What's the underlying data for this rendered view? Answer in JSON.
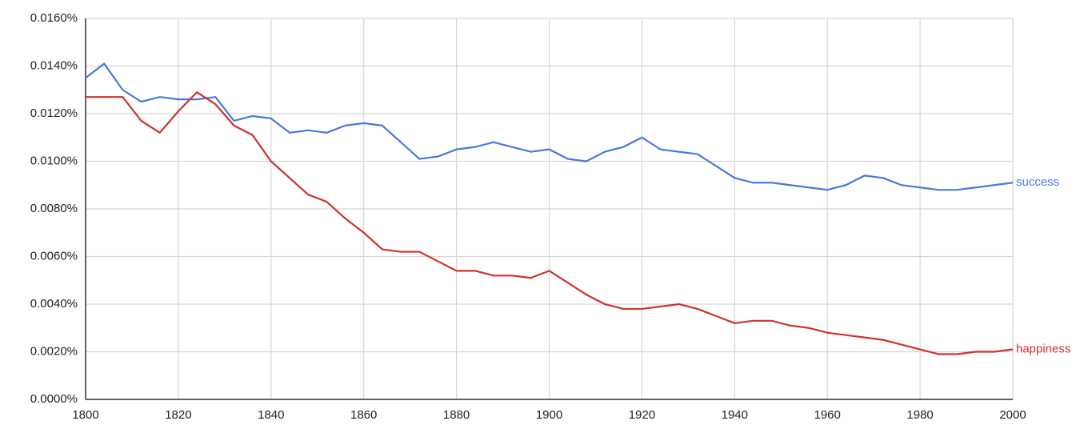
{
  "chart_data": {
    "type": "line",
    "x": [
      1800,
      1804,
      1808,
      1812,
      1816,
      1820,
      1824,
      1828,
      1832,
      1836,
      1840,
      1844,
      1848,
      1852,
      1856,
      1860,
      1864,
      1868,
      1872,
      1876,
      1880,
      1884,
      1888,
      1892,
      1896,
      1900,
      1904,
      1908,
      1912,
      1916,
      1920,
      1924,
      1928,
      1932,
      1936,
      1940,
      1944,
      1948,
      1952,
      1956,
      1960,
      1964,
      1968,
      1972,
      1976,
      1980,
      1984,
      1988,
      1992,
      1996,
      2000
    ],
    "series": [
      {
        "name": "success",
        "color": "#4a78e0",
        "values": [
          0.0135,
          0.0141,
          0.013,
          0.0125,
          0.0127,
          0.0126,
          0.0126,
          0.0127,
          0.0117,
          0.0119,
          0.0118,
          0.0112,
          0.0113,
          0.0112,
          0.0115,
          0.0116,
          0.0115,
          0.0108,
          0.0101,
          0.0102,
          0.0105,
          0.0106,
          0.0108,
          0.0106,
          0.0104,
          0.0105,
          0.0101,
          0.01,
          0.0104,
          0.0106,
          0.011,
          0.0105,
          0.0104,
          0.0103,
          0.0098,
          0.0093,
          0.0091,
          0.0091,
          0.009,
          0.0089,
          0.0088,
          0.009,
          0.0094,
          0.0093,
          0.009,
          0.0089,
          0.0088,
          0.0088,
          0.0089,
          0.009,
          0.0091
        ]
      },
      {
        "name": "happiness",
        "color": "#d0312d",
        "values": [
          0.0127,
          0.0127,
          0.0127,
          0.0117,
          0.0112,
          0.0121,
          0.0129,
          0.0124,
          0.0115,
          0.0111,
          0.01,
          0.0093,
          0.0086,
          0.0083,
          0.0076,
          0.007,
          0.0063,
          0.0062,
          0.0062,
          0.0058,
          0.0054,
          0.0054,
          0.0052,
          0.0052,
          0.0051,
          0.0054,
          0.0049,
          0.0044,
          0.004,
          0.0038,
          0.0038,
          0.0039,
          0.004,
          0.0038,
          0.0035,
          0.0032,
          0.0033,
          0.0033,
          0.0031,
          0.003,
          0.0028,
          0.0027,
          0.0026,
          0.0025,
          0.0023,
          0.0021,
          0.0019,
          0.0019,
          0.002,
          0.002,
          0.0021
        ]
      }
    ],
    "xlim": [
      1800,
      2000
    ],
    "xticks": [
      1800,
      1820,
      1840,
      1860,
      1880,
      1900,
      1920,
      1940,
      1960,
      1980,
      2000
    ],
    "ylim": [
      0,
      0.016
    ],
    "yticks": [
      {
        "value": 0,
        "label": "0.0000%"
      },
      {
        "value": 0.002,
        "label": "0.0020%"
      },
      {
        "value": 0.004,
        "label": "0.0040%"
      },
      {
        "value": 0.006,
        "label": "0.0060%"
      },
      {
        "value": 0.008,
        "label": "0.0080%"
      },
      {
        "value": 0.01,
        "label": "0.0100%"
      },
      {
        "value": 0.012,
        "label": "0.0120%"
      },
      {
        "value": 0.014,
        "label": "0.0140%"
      },
      {
        "value": 0.016,
        "label": "0.0160%"
      }
    ],
    "grid": true
  }
}
